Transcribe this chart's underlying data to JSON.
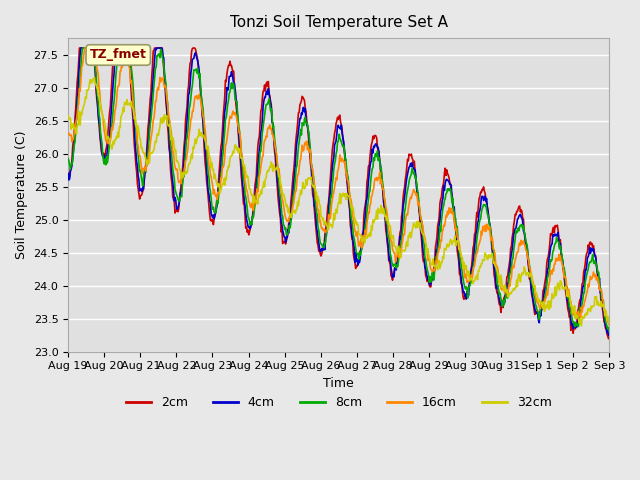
{
  "title": "Tonzi Soil Temperature Set A",
  "xlabel": "Time",
  "ylabel": "Soil Temperature (C)",
  "ylim": [
    23.0,
    27.75
  ],
  "yticks": [
    23.0,
    23.5,
    24.0,
    24.5,
    25.0,
    25.5,
    26.0,
    26.5,
    27.0,
    27.5
  ],
  "bg_color": "#e8e8e8",
  "plot_bg_color": "#e0e0e0",
  "grid_color": "#ffffff",
  "annotation_text": "TZ_fmet",
  "annotation_bg": "#ffffcc",
  "annotation_border": "#999966",
  "series_colors": {
    "2cm": "#cc0000",
    "4cm": "#0000cc",
    "8cm": "#00aa00",
    "16cm": "#ff8800",
    "32cm": "#cccc00"
  },
  "legend_labels": [
    "2cm",
    "4cm",
    "8cm",
    "16cm",
    "32cm"
  ],
  "x_tick_labels": [
    "Aug 19",
    "Aug 20",
    "Aug 21",
    "Aug 22",
    "Aug 23",
    "Aug 24",
    "Aug 25",
    "Aug 26",
    "Aug 27",
    "Aug 28",
    "Aug 29",
    "Aug 30",
    "Aug 31",
    "Sep 1",
    "Sep 2",
    "Sep 3"
  ],
  "num_days": 15
}
